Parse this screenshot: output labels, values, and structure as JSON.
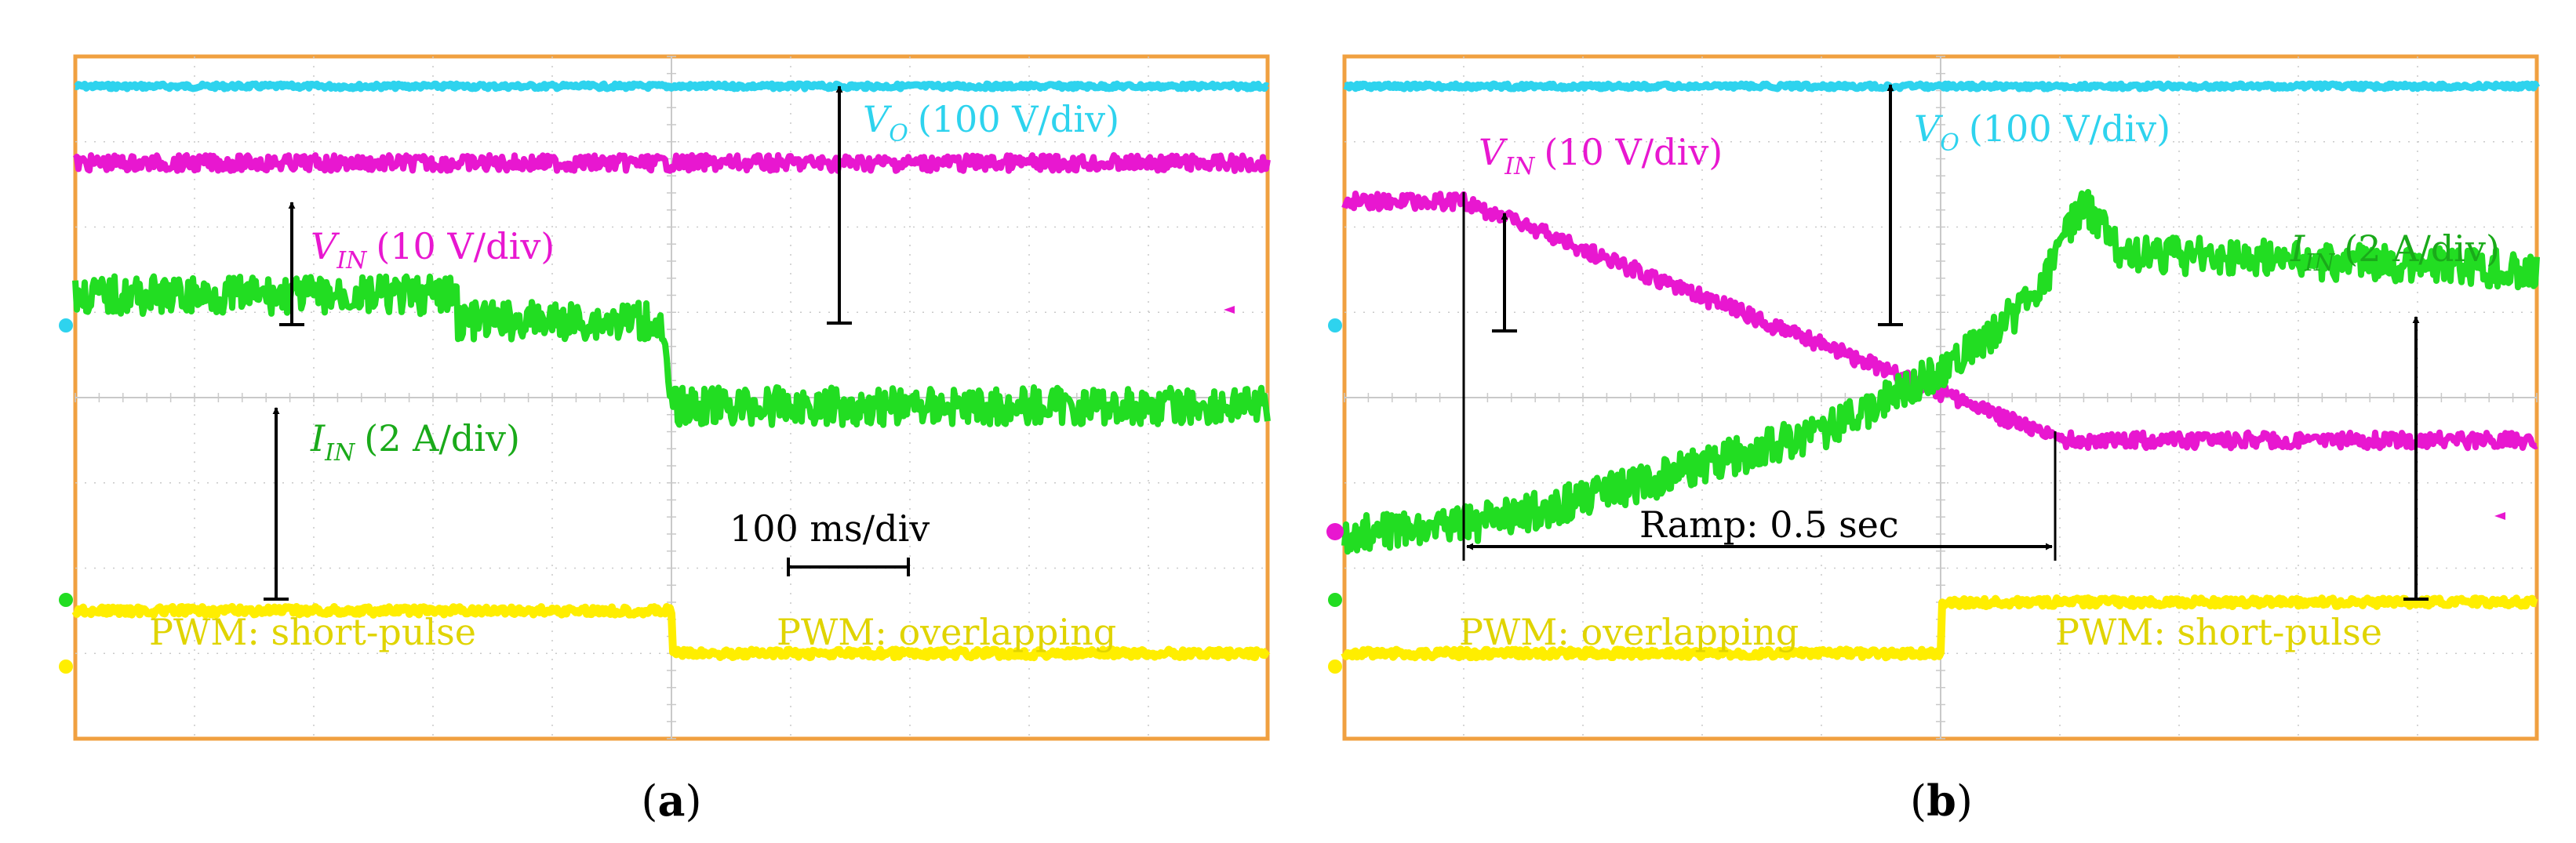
{
  "figure": {
    "panels": [
      {
        "caption_letter": "a",
        "annotations": {
          "vo_name": "V",
          "vo_sub": "O",
          "vo_scale": "(100 V/div)",
          "vin_name": "V",
          "vin_sub": "IN",
          "vin_scale": "(10 V/div)",
          "iin_name": "I",
          "iin_sub": "IN",
          "iin_scale": "(2 A/div)",
          "timebase": "100 ms/div",
          "pwm_left": "PWM: short-pulse",
          "pwm_right": "PWM: overlapping"
        }
      },
      {
        "caption_letter": "b",
        "annotations": {
          "vo_name": "V",
          "vo_sub": "O",
          "vo_scale": "(100 V/div)",
          "vin_name": "V",
          "vin_sub": "IN",
          "vin_scale": "(10 V/div)",
          "iin_name": "I",
          "iin_sub": "IN",
          "iin_scale": "(2 A/div)",
          "ramp": "Ramp: 0.5 sec",
          "pwm_left": "PWM: overlapping",
          "pwm_right": "PWM: short-pulse"
        }
      }
    ],
    "colors": {
      "vo": "#2ed3ee",
      "vin": "#e817d0",
      "iin": "#22dd22",
      "pwm": "#ffee00",
      "label_iin": "#1aaa1a",
      "label_pwm": "#e0d400",
      "grid": "#c9c9c9",
      "frame": "#f0a040"
    }
  },
  "chart_data": [
    {
      "type": "line",
      "panel": "a",
      "x_unit": "div (100 ms/div)",
      "x_range": [
        0,
        10
      ],
      "y_range_div": [
        0,
        8
      ],
      "series": [
        {
          "name": "V_O (100 V/div)",
          "x": [
            0,
            5,
            10
          ],
          "y": [
            7.65,
            7.65,
            7.65
          ]
        },
        {
          "name": "V_IN (10 V/div)",
          "x": [
            0,
            5,
            5,
            10
          ],
          "y": [
            6.75,
            6.75,
            6.75,
            6.75
          ]
        },
        {
          "name": "I_IN (2 A/div)",
          "x": [
            0,
            3.2,
            3.2,
            4.9,
            5.0,
            10
          ],
          "y": [
            5.2,
            5.2,
            4.9,
            4.9,
            3.9,
            3.9
          ]
        },
        {
          "name": "PWM",
          "x": [
            0,
            5,
            5,
            10
          ],
          "y": [
            1.5,
            1.5,
            1.0,
            1.0
          ]
        }
      ]
    },
    {
      "type": "line",
      "panel": "b",
      "x_unit": "div (100 ms/div)",
      "x_range": [
        0,
        10
      ],
      "y_range_div": [
        0,
        8
      ],
      "series": [
        {
          "name": "V_O (100 V/div)",
          "x": [
            0,
            10
          ],
          "y": [
            7.65,
            7.65
          ]
        },
        {
          "name": "V_IN (10 V/div)",
          "x": [
            0,
            1.0,
            6.0,
            10
          ],
          "y": [
            6.3,
            6.3,
            3.5,
            3.5
          ]
        },
        {
          "name": "I_IN (2 A/div)",
          "x": [
            0,
            1,
            2,
            3,
            4,
            5,
            5.2,
            5.8,
            6.2,
            6.5,
            10
          ],
          "y": [
            2.4,
            2.5,
            2.8,
            3.2,
            3.6,
            4.3,
            4.5,
            5.2,
            6.3,
            5.7,
            5.5
          ]
        },
        {
          "name": "PWM",
          "x": [
            0,
            5,
            5,
            10
          ],
          "y": [
            1.0,
            1.0,
            1.6,
            1.6
          ]
        }
      ],
      "ramp_interval_div": [
        1.0,
        6.0
      ]
    }
  ]
}
